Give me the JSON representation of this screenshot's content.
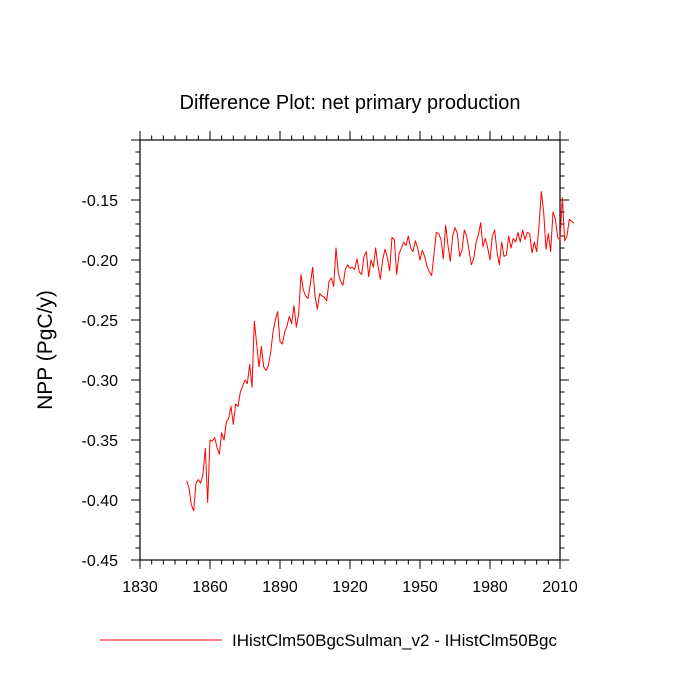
{
  "chart_data": {
    "type": "line",
    "title": "Difference Plot: net primary production",
    "ylabel": "NPP  (PgC/y)",
    "xlabel": "",
    "xlim": [
      1830,
      2010
    ],
    "ylim": [
      -0.45,
      -0.1
    ],
    "x_ticks": [
      1830,
      1860,
      1890,
      1920,
      1950,
      1980,
      2010
    ],
    "y_ticks": [
      -0.45,
      -0.4,
      -0.35,
      -0.3,
      -0.25,
      -0.2,
      -0.15
    ],
    "grid": false,
    "legend_position": "bottom",
    "series": [
      {
        "name": "IHistClm50BgcSulman_v2 - IHistClm50Bgc",
        "color": "#ff0000",
        "x_start": 1850,
        "x_step": 1,
        "values": [
          -0.384,
          -0.39,
          -0.404,
          -0.409,
          -0.386,
          -0.383,
          -0.386,
          -0.378,
          -0.357,
          -0.402,
          -0.35,
          -0.351,
          -0.348,
          -0.356,
          -0.362,
          -0.344,
          -0.35,
          -0.335,
          -0.332,
          -0.322,
          -0.337,
          -0.32,
          -0.322,
          -0.31,
          -0.305,
          -0.3,
          -0.303,
          -0.287,
          -0.306,
          -0.251,
          -0.27,
          -0.289,
          -0.272,
          -0.289,
          -0.292,
          -0.288,
          -0.277,
          -0.26,
          -0.25,
          -0.243,
          -0.268,
          -0.27,
          -0.26,
          -0.255,
          -0.247,
          -0.253,
          -0.238,
          -0.256,
          -0.245,
          -0.212,
          -0.225,
          -0.23,
          -0.232,
          -0.22,
          -0.206,
          -0.23,
          -0.241,
          -0.228,
          -0.23,
          -0.231,
          -0.234,
          -0.218,
          -0.215,
          -0.222,
          -0.19,
          -0.211,
          -0.218,
          -0.221,
          -0.208,
          -0.204,
          -0.207,
          -0.206,
          -0.208,
          -0.199,
          -0.21,
          -0.212,
          -0.197,
          -0.193,
          -0.214,
          -0.2,
          -0.206,
          -0.19,
          -0.205,
          -0.216,
          -0.2,
          -0.191,
          -0.198,
          -0.209,
          -0.181,
          -0.183,
          -0.212,
          -0.195,
          -0.19,
          -0.185,
          -0.188,
          -0.18,
          -0.19,
          -0.193,
          -0.184,
          -0.19,
          -0.2,
          -0.192,
          -0.197,
          -0.205,
          -0.21,
          -0.213,
          -0.195,
          -0.177,
          -0.178,
          -0.183,
          -0.199,
          -0.171,
          -0.188,
          -0.201,
          -0.18,
          -0.173,
          -0.178,
          -0.197,
          -0.192,
          -0.175,
          -0.18,
          -0.192,
          -0.204,
          -0.199,
          -0.186,
          -0.179,
          -0.169,
          -0.189,
          -0.182,
          -0.19,
          -0.2,
          -0.18,
          -0.175,
          -0.193,
          -0.204,
          -0.185,
          -0.197,
          -0.196,
          -0.18,
          -0.19,
          -0.182,
          -0.185,
          -0.177,
          -0.185,
          -0.175,
          -0.183,
          -0.177,
          -0.178,
          -0.194,
          -0.185,
          -0.193,
          -0.172,
          -0.143,
          -0.16,
          -0.191,
          -0.178,
          -0.193,
          -0.16,
          -0.166,
          -0.181,
          -0.183,
          -0.148,
          -0.184,
          -0.18,
          -0.166,
          -0.168,
          -0.169
        ]
      }
    ]
  }
}
